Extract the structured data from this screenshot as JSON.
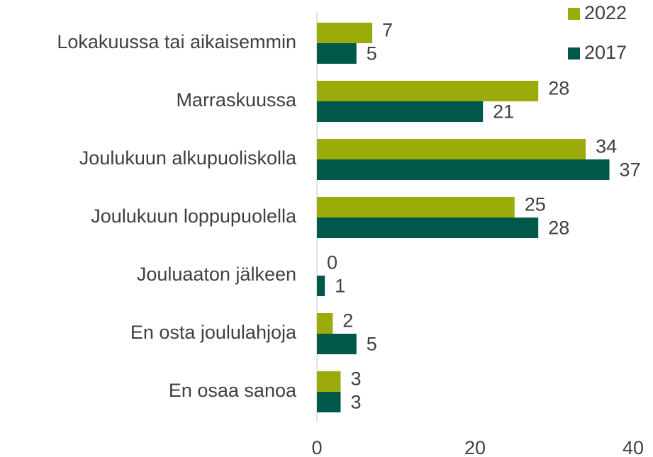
{
  "chart_data": {
    "type": "hbar",
    "categories": [
      "Lokakuussa tai aikaisemmin",
      "Marraskuussa",
      "Joulukuun alkupuoliskolla",
      "Joulukuun loppupuolella",
      "Jouluaaton jälkeen",
      "En osta joululahjoja",
      "En osaa sanoa"
    ],
    "series": [
      {
        "name": "2022",
        "color": "#9bab0a",
        "values": [
          7,
          28,
          34,
          25,
          0,
          2,
          3
        ]
      },
      {
        "name": "2017",
        "color": "#00584a",
        "values": [
          5,
          21,
          37,
          28,
          1,
          5,
          3
        ]
      }
    ],
    "xlim": [
      0,
      40
    ],
    "xticks": [
      0,
      20,
      40
    ],
    "grid": false,
    "legend": "top-right"
  }
}
